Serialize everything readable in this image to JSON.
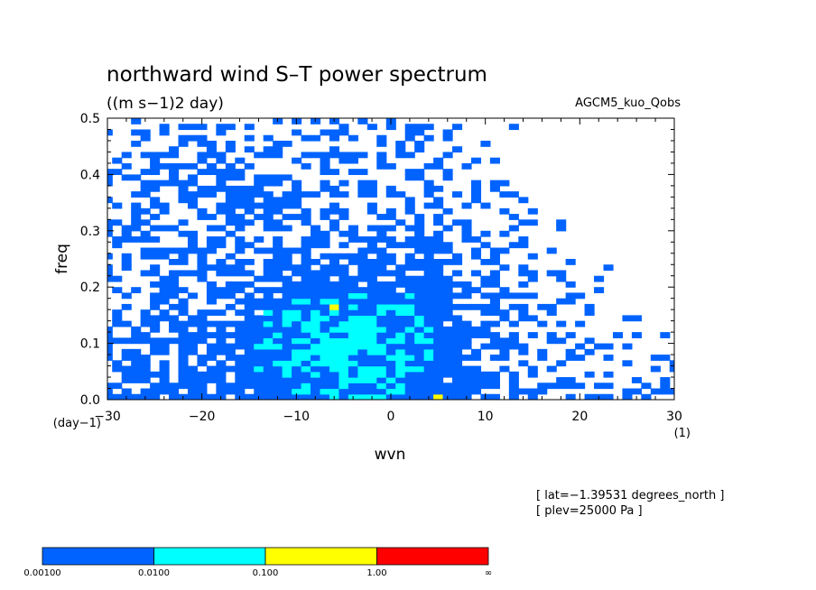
{
  "chart_data": {
    "type": "heatmap",
    "title": "northward wind S–T power spectrum",
    "subtitle": "((m s−1)2 day)",
    "dataset_label": "AGCM5_kuo_Qobs",
    "xlabel": "wvn",
    "ylabel": "freq",
    "x_unit": "(1)",
    "y_unit": "(day−1)",
    "xlim": [
      -30,
      30
    ],
    "ylim": [
      0,
      0.5
    ],
    "x_ticks": [
      "−30",
      "−20",
      "−10",
      "0",
      "10",
      "20",
      "30"
    ],
    "y_ticks": [
      "0.0",
      "0.1",
      "0.2",
      "0.3",
      "0.4",
      "0.5"
    ],
    "notes": [
      "[ lat=−1.39531 degrees_north ]",
      "[ plev=25000 Pa ]"
    ],
    "colorbar": {
      "labels": [
        "0.00100",
        "0.0100",
        "0.100",
        "1.00",
        "∞"
      ],
      "levels": [
        0.001,
        0.01,
        0.1,
        1.0
      ],
      "colors": [
        "#0063ff",
        "#00ffff",
        "#ffff00",
        "#ff0000"
      ]
    },
    "approx_field_description_levels": {
      "blue_region_0.001_to_0.01": "most of domain, sparser at high wvn/high freq",
      "cyan_region_0.01_to_0.1": "centered near wvn -5, freq 0.05-0.2",
      "yellow_region_0.1_to_1": "isolated near wvn -6, freq 0.165"
    }
  }
}
